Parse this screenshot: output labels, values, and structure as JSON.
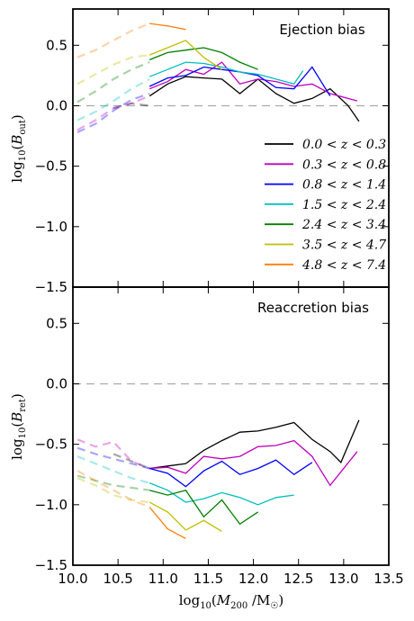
{
  "chart_data": {
    "type": "line",
    "x_range": [
      10.0,
      13.5
    ],
    "x_ticks": [
      "10.0",
      "10.5",
      "11.0",
      "11.5",
      "12.0",
      "12.5",
      "13.0",
      "13.5"
    ],
    "x_label": "log10(M200 / M☉)",
    "legend": {
      "placement": "right (upper panel)",
      "entries": [
        {
          "label": "0.0 < z < 0.3",
          "color": "#000000"
        },
        {
          "label": "0.3 < z < 0.8",
          "color": "#bf00bf"
        },
        {
          "label": "0.8 < z < 1.4",
          "color": "#0000ff"
        },
        {
          "label": "1.5 < z < 2.4",
          "color": "#00bfbf"
        },
        {
          "label": "2.4 < z < 3.4",
          "color": "#007f00"
        },
        {
          "label": "3.5 < z < 4.7",
          "color": "#bfbf00"
        },
        {
          "label": "4.8 < z < 7.4",
          "color": "#ff7f0e"
        }
      ]
    },
    "panels": [
      {
        "name": "top",
        "title": "Ejection bias",
        "y_label": "log10(Bout)",
        "y_range": [
          -1.5,
          0.8
        ],
        "y_ticks": [
          "0.5",
          "0.0",
          "−0.5",
          "−1.0",
          "−1.5"
        ],
        "reference_line_y": 0.0,
        "series": [
          {
            "color": "#000000",
            "dashed": [
              [
                10.45,
                -0.02
              ],
              [
                10.65,
                0.02
              ],
              [
                10.85,
                0.0
              ]
            ],
            "solid": [
              [
                10.85,
                0.08
              ],
              [
                11.05,
                0.18
              ],
              [
                11.25,
                0.24
              ],
              [
                11.45,
                0.23
              ],
              [
                11.65,
                0.22
              ],
              [
                11.85,
                0.1
              ],
              [
                12.05,
                0.22
              ],
              [
                12.25,
                0.1
              ],
              [
                12.45,
                0.02
              ],
              [
                12.65,
                0.06
              ],
              [
                12.85,
                0.14
              ],
              [
                13.05,
                0.0
              ],
              [
                13.17,
                -0.13
              ]
            ]
          },
          {
            "color": "#bf00bf",
            "dashed": [
              [
                10.05,
                -0.2
              ],
              [
                10.25,
                -0.12
              ],
              [
                10.45,
                -0.02
              ],
              [
                10.65,
                0.02
              ],
              [
                10.85,
                0.08
              ]
            ],
            "solid": [
              [
                10.85,
                0.14
              ],
              [
                11.05,
                0.2
              ],
              [
                11.25,
                0.3
              ],
              [
                11.45,
                0.26
              ],
              [
                11.65,
                0.36
              ],
              [
                11.85,
                0.18
              ],
              [
                12.05,
                0.22
              ],
              [
                12.25,
                0.2
              ],
              [
                12.45,
                0.16
              ],
              [
                12.65,
                0.18
              ],
              [
                12.85,
                0.1
              ],
              [
                13.15,
                0.04
              ]
            ]
          },
          {
            "color": "#0000ff",
            "dashed": [
              [
                10.05,
                -0.22
              ],
              [
                10.25,
                -0.15
              ],
              [
                10.45,
                -0.04
              ],
              [
                10.65,
                0.05
              ],
              [
                10.85,
                0.1
              ]
            ],
            "solid": [
              [
                10.85,
                0.16
              ],
              [
                11.05,
                0.23
              ],
              [
                11.25,
                0.25
              ],
              [
                11.45,
                0.32
              ],
              [
                11.65,
                0.3
              ],
              [
                11.85,
                0.28
              ],
              [
                12.05,
                0.25
              ],
              [
                12.25,
                0.15
              ],
              [
                12.45,
                0.14
              ],
              [
                12.65,
                0.32
              ],
              [
                12.85,
                0.08
              ]
            ]
          },
          {
            "color": "#00bfbf",
            "dashed": [
              [
                10.05,
                -0.12
              ],
              [
                10.25,
                -0.05
              ],
              [
                10.45,
                0.04
              ],
              [
                10.65,
                0.14
              ],
              [
                10.85,
                0.22
              ]
            ],
            "solid": [
              [
                10.85,
                0.24
              ],
              [
                11.05,
                0.3
              ],
              [
                11.25,
                0.36
              ],
              [
                11.45,
                0.35
              ],
              [
                11.65,
                0.32
              ],
              [
                11.85,
                0.28
              ],
              [
                12.05,
                0.26
              ],
              [
                12.25,
                0.22
              ],
              [
                12.45,
                0.18
              ],
              [
                12.55,
                0.29
              ]
            ]
          },
          {
            "color": "#007f00",
            "dashed": [
              [
                10.05,
                0.03
              ],
              [
                10.25,
                0.12
              ],
              [
                10.45,
                0.22
              ],
              [
                10.65,
                0.3
              ],
              [
                10.85,
                0.36
              ]
            ],
            "solid": [
              [
                10.85,
                0.38
              ],
              [
                11.05,
                0.44
              ],
              [
                11.25,
                0.46
              ],
              [
                11.45,
                0.48
              ],
              [
                11.65,
                0.44
              ],
              [
                11.85,
                0.36
              ],
              [
                12.05,
                0.3
              ]
            ]
          },
          {
            "color": "#bfbf00",
            "dashed": [
              [
                10.05,
                0.18
              ],
              [
                10.25,
                0.26
              ],
              [
                10.45,
                0.34
              ],
              [
                10.65,
                0.4
              ],
              [
                10.85,
                0.42
              ]
            ],
            "solid": [
              [
                10.85,
                0.42
              ],
              [
                11.05,
                0.48
              ],
              [
                11.25,
                0.54
              ],
              [
                11.45,
                0.4
              ],
              [
                11.65,
                0.3
              ]
            ]
          },
          {
            "color": "#ff7f0e",
            "dashed": [
              [
                10.05,
                0.4
              ],
              [
                10.25,
                0.46
              ],
              [
                10.45,
                0.54
              ],
              [
                10.65,
                0.62
              ],
              [
                10.85,
                0.68
              ]
            ],
            "solid": [
              [
                10.85,
                0.68
              ],
              [
                11.05,
                0.66
              ],
              [
                11.25,
                0.63
              ]
            ]
          }
        ]
      },
      {
        "name": "bottom",
        "title": "Reaccretion bias",
        "y_label": "log10(Bret)",
        "y_range": [
          -1.5,
          0.8
        ],
        "y_ticks": [
          "0.5",
          "0.0",
          "−0.5",
          "−1.0",
          "−1.5"
        ],
        "reference_line_y": 0.0,
        "series": [
          {
            "color": "#000000",
            "dashed": [
              [
                10.45,
                -0.58
              ],
              [
                10.65,
                -0.64
              ],
              [
                10.85,
                -0.7
              ]
            ],
            "solid": [
              [
                10.85,
                -0.7
              ],
              [
                11.05,
                -0.68
              ],
              [
                11.25,
                -0.66
              ],
              [
                11.45,
                -0.55
              ],
              [
                11.65,
                -0.47
              ],
              [
                11.85,
                -0.4
              ],
              [
                12.05,
                -0.39
              ],
              [
                12.25,
                -0.36
              ],
              [
                12.45,
                -0.32
              ],
              [
                12.65,
                -0.46
              ],
              [
                12.85,
                -0.56
              ],
              [
                12.97,
                -0.65
              ],
              [
                13.17,
                -0.3
              ]
            ]
          },
          {
            "color": "#bf00bf",
            "dashed": [
              [
                10.05,
                -0.46
              ],
              [
                10.25,
                -0.52
              ],
              [
                10.45,
                -0.48
              ],
              [
                10.65,
                -0.64
              ],
              [
                10.85,
                -0.7
              ]
            ],
            "solid": [
              [
                10.85,
                -0.7
              ],
              [
                11.05,
                -0.69
              ],
              [
                11.25,
                -0.74
              ],
              [
                11.45,
                -0.6
              ],
              [
                11.65,
                -0.62
              ],
              [
                11.85,
                -0.6
              ],
              [
                12.05,
                -0.52
              ],
              [
                12.25,
                -0.51
              ],
              [
                12.45,
                -0.47
              ],
              [
                12.65,
                -0.6
              ],
              [
                12.85,
                -0.84
              ],
              [
                13.15,
                -0.56
              ]
            ]
          },
          {
            "color": "#0000ff",
            "dashed": [
              [
                10.05,
                -0.53
              ],
              [
                10.25,
                -0.58
              ],
              [
                10.45,
                -0.62
              ],
              [
                10.65,
                -0.66
              ],
              [
                10.85,
                -0.7
              ]
            ],
            "solid": [
              [
                10.85,
                -0.7
              ],
              [
                11.05,
                -0.74
              ],
              [
                11.25,
                -0.85
              ],
              [
                11.45,
                -0.72
              ],
              [
                11.65,
                -0.64
              ],
              [
                11.85,
                -0.75
              ],
              [
                12.05,
                -0.7
              ],
              [
                12.25,
                -0.63
              ],
              [
                12.45,
                -0.75
              ],
              [
                12.65,
                -0.65
              ]
            ]
          },
          {
            "color": "#00bfbf",
            "dashed": [
              [
                10.05,
                -0.6
              ],
              [
                10.25,
                -0.66
              ],
              [
                10.45,
                -0.72
              ],
              [
                10.65,
                -0.78
              ],
              [
                10.85,
                -0.82
              ]
            ],
            "solid": [
              [
                10.85,
                -0.82
              ],
              [
                11.05,
                -0.88
              ],
              [
                11.25,
                -0.98
              ],
              [
                11.45,
                -0.95
              ],
              [
                11.65,
                -0.9
              ],
              [
                11.85,
                -0.94
              ],
              [
                12.05,
                -1.0
              ],
              [
                12.25,
                -0.94
              ],
              [
                12.45,
                -0.92
              ]
            ]
          },
          {
            "color": "#007f00",
            "dashed": [
              [
                10.05,
                -0.76
              ],
              [
                10.25,
                -0.8
              ],
              [
                10.45,
                -0.84
              ],
              [
                10.65,
                -0.86
              ],
              [
                10.85,
                -0.88
              ]
            ],
            "solid": [
              [
                10.85,
                -0.88
              ],
              [
                11.05,
                -0.92
              ],
              [
                11.25,
                -0.88
              ],
              [
                11.45,
                -1.1
              ],
              [
                11.65,
                -0.96
              ],
              [
                11.85,
                -1.16
              ],
              [
                12.05,
                -1.06
              ]
            ]
          },
          {
            "color": "#bfbf00",
            "dashed": [
              [
                10.05,
                -0.78
              ],
              [
                10.25,
                -0.84
              ],
              [
                10.45,
                -0.92
              ],
              [
                10.65,
                -0.96
              ],
              [
                10.85,
                -0.98
              ]
            ],
            "solid": [
              [
                10.85,
                -0.98
              ],
              [
                11.05,
                -1.06
              ],
              [
                11.25,
                -1.21
              ],
              [
                11.45,
                -1.13
              ],
              [
                11.65,
                -1.22
              ]
            ]
          },
          {
            "color": "#ff7f0e",
            "dashed": [
              [
                10.05,
                -0.72
              ],
              [
                10.25,
                -0.8
              ],
              [
                10.45,
                -0.88
              ],
              [
                10.65,
                -0.96
              ],
              [
                10.85,
                -1.02
              ]
            ],
            "solid": [
              [
                10.85,
                -1.02
              ],
              [
                11.05,
                -1.2
              ],
              [
                11.25,
                -1.28
              ]
            ]
          }
        ]
      }
    ]
  }
}
